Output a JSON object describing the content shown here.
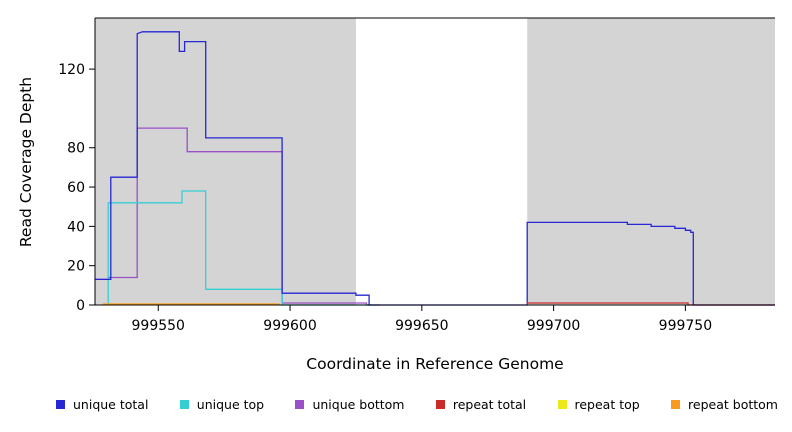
{
  "chart_data": {
    "type": "line",
    "title": "",
    "xlabel": "Coordinate in Reference Genome",
    "ylabel": "Read Coverage Depth",
    "xlim": [
      999526,
      999784
    ],
    "ylim": [
      0,
      146
    ],
    "xticks": [
      999550,
      999600,
      999650,
      999700,
      999750
    ],
    "yticks": [
      0,
      20,
      40,
      60,
      80,
      120
    ],
    "grid": false,
    "legend_position": "bottom-horizontal",
    "background_color": "#ffffff",
    "shaded_region_color": "#d4d4d4",
    "shaded_regions": [
      {
        "x0": 999526,
        "x1": 999625
      },
      {
        "x0": 999690,
        "x1": 999784
      }
    ],
    "series": [
      {
        "name": "unique total",
        "color": "#2727d3",
        "points": [
          [
            999526,
            13
          ],
          [
            999532,
            13
          ],
          [
            999532,
            65
          ],
          [
            999542,
            65
          ],
          [
            999542,
            138
          ],
          [
            999544,
            139
          ],
          [
            999558,
            139
          ],
          [
            999558,
            129
          ],
          [
            999560,
            129
          ],
          [
            999560,
            134
          ],
          [
            999568,
            134
          ],
          [
            999568,
            85
          ],
          [
            999597,
            85
          ],
          [
            999597,
            6
          ],
          [
            999625,
            6
          ],
          [
            999625,
            5
          ],
          [
            999630,
            5
          ],
          [
            999630,
            0
          ],
          [
            999690,
            0
          ],
          [
            999690,
            42
          ],
          [
            999728,
            42
          ],
          [
            999728,
            41
          ],
          [
            999737,
            41
          ],
          [
            999737,
            40
          ],
          [
            999746,
            40
          ],
          [
            999746,
            39
          ],
          [
            999750,
            39
          ],
          [
            999750,
            38
          ],
          [
            999752,
            38
          ],
          [
            999752,
            37
          ],
          [
            999753,
            37
          ],
          [
            999753,
            0
          ],
          [
            999784,
            0
          ]
        ]
      },
      {
        "name": "unique top",
        "color": "#35cfd3",
        "points": [
          [
            999531,
            0
          ],
          [
            999531,
            52
          ],
          [
            999559,
            52
          ],
          [
            999559,
            58
          ],
          [
            999568,
            58
          ],
          [
            999568,
            8
          ],
          [
            999597,
            8
          ],
          [
            999597,
            0
          ],
          [
            999632,
            0
          ]
        ]
      },
      {
        "name": "unique bottom",
        "color": "#9a50c8",
        "points": [
          [
            999526,
            13
          ],
          [
            999531,
            13
          ],
          [
            999531,
            14
          ],
          [
            999542,
            14
          ],
          [
            999542,
            90
          ],
          [
            999561,
            90
          ],
          [
            999561,
            78
          ],
          [
            999597,
            78
          ],
          [
            999597,
            1
          ],
          [
            999629,
            1
          ],
          [
            999629,
            0
          ],
          [
            999634,
            0
          ]
        ]
      },
      {
        "name": "repeat total",
        "color": "#c92a2a",
        "points": [
          [
            999690,
            0
          ],
          [
            999690,
            1
          ],
          [
            999751,
            1
          ],
          [
            999751,
            0
          ],
          [
            999784,
            0
          ]
        ]
      },
      {
        "name": "repeat top",
        "color": "#ece81a",
        "points": [
          [
            999529,
            0.5
          ],
          [
            999596,
            0.5
          ]
        ]
      },
      {
        "name": "repeat bottom",
        "color": "#f79a1f",
        "points": [
          [
            999529,
            0.5
          ],
          [
            999596,
            0.5
          ]
        ]
      }
    ]
  },
  "legend": {
    "items": [
      {
        "label": "unique total",
        "color": "#2727d3"
      },
      {
        "label": "unique top",
        "color": "#35cfd3"
      },
      {
        "label": "unique bottom",
        "color": "#9a50c8"
      },
      {
        "label": "repeat total",
        "color": "#c92a2a"
      },
      {
        "label": "repeat top",
        "color": "#ece81a"
      },
      {
        "label": "repeat bottom",
        "color": "#f79a1f"
      }
    ]
  }
}
